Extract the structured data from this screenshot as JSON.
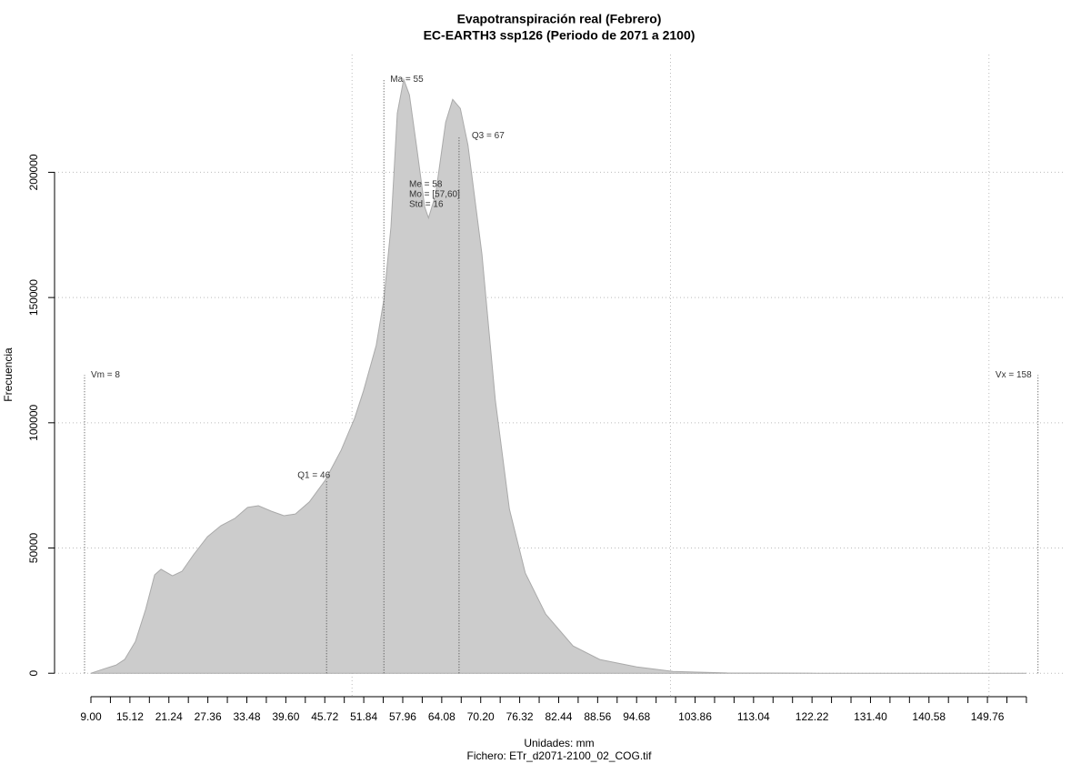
{
  "chart_data": {
    "type": "area",
    "title": "Evapotranspiración real (Febrero)",
    "subtitle": "EC-EARTH3 ssp126 (Periodo de 2071 a 2100)",
    "x_label": "Unidades: mm",
    "caption": "Fichero: ETr_d2071-2100_02_COG.tif",
    "y_label": "Frecuencia",
    "color": "#cccccc",
    "x": [
      9,
      11.1,
      13.0,
      14.3,
      16.0,
      17.6,
      19.0,
      20.0,
      21.8,
      23.3,
      25.1,
      27.3,
      29.4,
      31.6,
      33.6,
      35.3,
      37.3,
      39.3,
      41.1,
      43.3,
      45.8,
      48.3,
      50.4,
      51.8,
      53.8,
      55.0,
      56.1,
      57.1,
      58.1,
      59.0,
      60.1,
      61.4,
      62.0,
      63.1,
      64.7,
      65.8,
      67.0,
      68.2,
      70.4,
      72.5,
      74.7,
      77.2,
      80.4,
      84.7,
      88.9,
      94.7,
      100.4,
      108.9,
      123.2,
      137.5,
      155.8
    ],
    "values": [
      0,
      1800,
      3300,
      5500,
      12700,
      25500,
      39300,
      41500,
      38900,
      40700,
      47300,
      54500,
      58900,
      61800,
      66200,
      66900,
      64700,
      62900,
      63600,
      68400,
      77100,
      89100,
      101800,
      112700,
      130900,
      149100,
      178200,
      223600,
      237100,
      230900,
      210900,
      186200,
      181800,
      190900,
      220000,
      229100,
      225500,
      210900,
      167300,
      109100,
      65500,
      40000,
      23600,
      10900,
      5500,
      2500,
      730,
      100,
      20,
      5,
      0
    ],
    "xlim": [
      3.29,
      161.74
    ],
    "ylim": [
      -9000,
      247000
    ],
    "yticks": [
      0,
      50000,
      100000,
      150000,
      200000
    ],
    "xticks": [
      {
        "value": 9.0,
        "label": "9.00"
      },
      {
        "value": 15.12,
        "label": "15.12"
      },
      {
        "value": 21.24,
        "label": "21.24"
      },
      {
        "value": 27.36,
        "label": "27.36"
      },
      {
        "value": 33.48,
        "label": "33.48"
      },
      {
        "value": 39.6,
        "label": "39.60"
      },
      {
        "value": 45.72,
        "label": "45.72"
      },
      {
        "value": 51.84,
        "label": "51.84"
      },
      {
        "value": 57.96,
        "label": "57.96"
      },
      {
        "value": 64.08,
        "label": "64.08"
      },
      {
        "value": 70.2,
        "label": "70.20"
      },
      {
        "value": 76.32,
        "label": "76.32"
      },
      {
        "value": 82.44,
        "label": "82.44"
      },
      {
        "value": 88.56,
        "label": "88.56"
      },
      {
        "value": 94.68,
        "label": "94.68"
      },
      {
        "value": 103.86,
        "label": "103.86"
      },
      {
        "value": 113.04,
        "label": "113.04"
      },
      {
        "value": 122.22,
        "label": "122.22"
      },
      {
        "value": 131.4,
        "label": "131.40"
      },
      {
        "value": 140.58,
        "label": "140.58"
      },
      {
        "value": 149.76,
        "label": "149.76"
      }
    ],
    "xminorticks": [
      12.06,
      18.18,
      24.3,
      30.42,
      36.54,
      42.66,
      48.78,
      54.9,
      61.02,
      67.14,
      73.26,
      79.38,
      85.5,
      91.62,
      97.74,
      100.8,
      106.92,
      109.98,
      116.1,
      119.16,
      125.28,
      128.34,
      134.46,
      137.52,
      143.64,
      146.7,
      152.82,
      155.88
    ],
    "xgrid": [
      50,
      100,
      150
    ],
    "grid": true,
    "annotations": [
      {
        "label": "Vm = 8",
        "x": 8,
        "y": 119000
      },
      {
        "label": "Q1 = 46",
        "x": 46,
        "y": 77400
      },
      {
        "label": "Ma = 55",
        "x": 55,
        "y": 237000
      },
      {
        "label": "Q3 = 67",
        "x": 66.8,
        "y": 214500
      },
      {
        "label": "Vx = 158",
        "x": 157.7,
        "y": 119000
      }
    ],
    "stats": [
      "Me = 58",
      "Mo = [57,60]",
      "Std = 16"
    ]
  }
}
